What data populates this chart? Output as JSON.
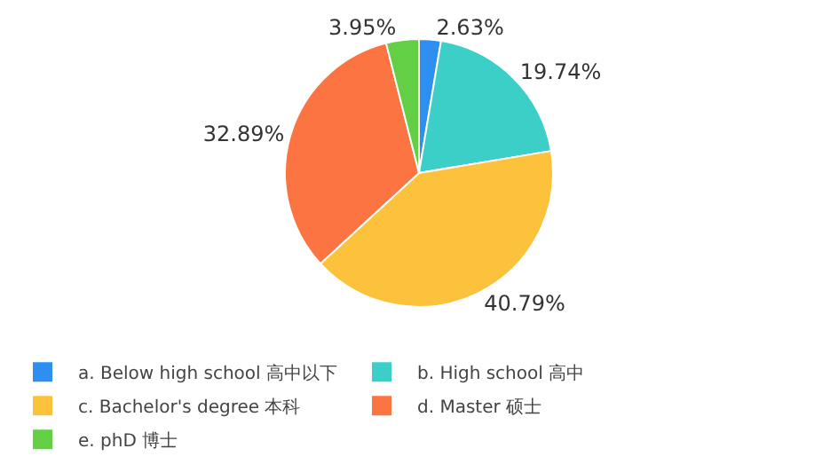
{
  "chart_data": {
    "type": "pie",
    "categories": [
      "a. Below high school 高中以下",
      "b. High school 高中",
      "c. Bachelor's degree 本科",
      "d. Master 硕士",
      "e. phD 博士"
    ],
    "values": [
      2.63,
      19.74,
      40.79,
      32.89,
      3.95
    ],
    "value_labels": [
      "2.63%",
      "19.74%",
      "40.79%",
      "32.89%",
      "3.95%"
    ],
    "colors": [
      "#2f8ff0",
      "#3ccfc8",
      "#fcc23c",
      "#fb7442",
      "#62cf44"
    ],
    "legend": "bottom"
  }
}
